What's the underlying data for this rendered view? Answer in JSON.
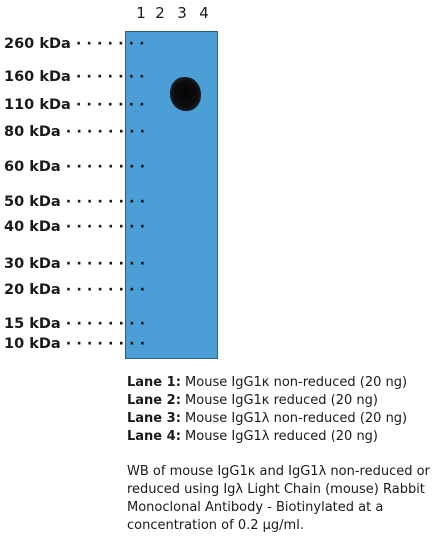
{
  "lanes": [
    "1",
    "2",
    "3",
    "4"
  ],
  "markers": [
    {
      "label": "260 kDa"
    },
    {
      "label": "160 kDa"
    },
    {
      "label": "110 kDa"
    },
    {
      "label": "80 kDa"
    },
    {
      "label": "60 kDa"
    },
    {
      "label": "50 kDa"
    },
    {
      "label": "40 kDa"
    },
    {
      "label": "30 kDa"
    },
    {
      "label": "20 kDa"
    },
    {
      "label": "15 kDa"
    },
    {
      "label": "10 kDa"
    }
  ],
  "legend": [
    {
      "lane": "Lane 1:",
      "text": "Mouse IgG1κ non-reduced (20 ng)"
    },
    {
      "lane": "Lane 2:",
      "text": "Mouse IgG1κ reduced (20 ng)"
    },
    {
      "lane": "Lane 3:",
      "text": "Mouse IgG1λ non-reduced (20 ng)"
    },
    {
      "lane": "Lane 4:",
      "text": "Mouse IgG1λ reduced (20 ng)"
    }
  ],
  "caption": "WB of mouse IgG1κ and IgG1λ non-reduced or reduced using Igλ Light Chain (mouse) Rabbit Monoclonal Antibody - Biotinylated at a concentration of 0.2 µg/ml."
}
